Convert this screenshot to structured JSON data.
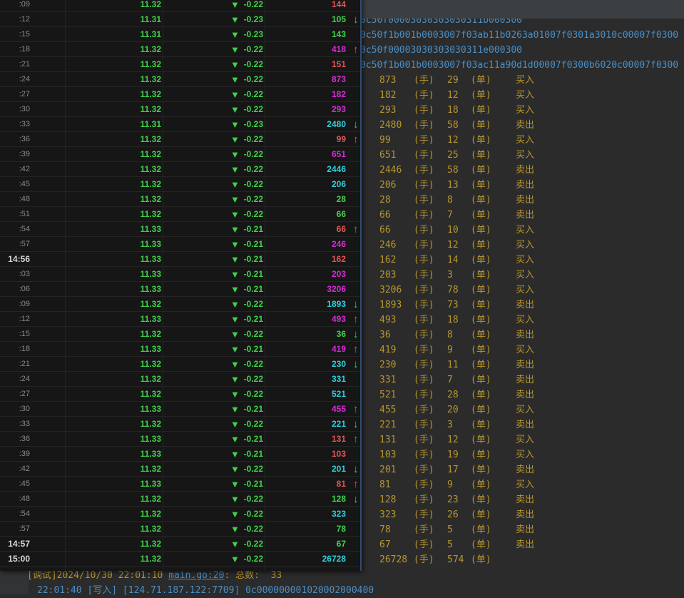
{
  "colors": {
    "red": "#e05555",
    "green": "#3fd24a",
    "magenta": "#d82ad8",
    "cyan": "#2ed0dc",
    "console_yellow": "#b8972e",
    "console_blue": "#4a8fc7"
  },
  "console": {
    "hex_lines": [
      "0c50f00003030303030311b000300",
      "0c50f1b001b0003007f03ab11b0263a01007f0301a3010c00007f0300",
      "0c50f00003030303030311e000300",
      "0c50f1b001b0003007f03ac11a90d1d00007f0300b6020c00007f0300"
    ],
    "unit_hand": "(手)",
    "unit_order": "(单)",
    "trade_lines": [
      {
        "vol": "873",
        "orders": "29",
        "side": "买入"
      },
      {
        "vol": "182",
        "orders": "12",
        "side": "买入"
      },
      {
        "vol": "293",
        "orders": "18",
        "side": "买入"
      },
      {
        "vol": "2480",
        "orders": "58",
        "side": "卖出"
      },
      {
        "vol": "99",
        "orders": "12",
        "side": "买入"
      },
      {
        "vol": "651",
        "orders": "25",
        "side": "买入"
      },
      {
        "vol": "2446",
        "orders": "58",
        "side": "卖出"
      },
      {
        "vol": "206",
        "orders": "13",
        "side": "卖出"
      },
      {
        "vol": "28",
        "orders": "8",
        "side": "卖出"
      },
      {
        "vol": "66",
        "orders": "7",
        "side": "卖出"
      },
      {
        "vol": "66",
        "orders": "10",
        "side": "买入"
      },
      {
        "vol": "246",
        "orders": "12",
        "side": "买入"
      },
      {
        "vol": "162",
        "orders": "14",
        "side": "买入"
      },
      {
        "vol": "203",
        "orders": "3",
        "side": "买入"
      },
      {
        "vol": "3206",
        "orders": "78",
        "side": "买入"
      },
      {
        "vol": "1893",
        "orders": "73",
        "side": "卖出"
      },
      {
        "vol": "493",
        "orders": "18",
        "side": "买入"
      },
      {
        "vol": "36",
        "orders": "8",
        "side": "卖出"
      },
      {
        "vol": "419",
        "orders": "9",
        "side": "买入"
      },
      {
        "vol": "230",
        "orders": "11",
        "side": "卖出"
      },
      {
        "vol": "331",
        "orders": "7",
        "side": "卖出"
      },
      {
        "vol": "521",
        "orders": "28",
        "side": "卖出"
      },
      {
        "vol": "455",
        "orders": "20",
        "side": "买入"
      },
      {
        "vol": "221",
        "orders": "3",
        "side": "卖出"
      },
      {
        "vol": "131",
        "orders": "12",
        "side": "买入"
      },
      {
        "vol": "103",
        "orders": "19",
        "side": "买入"
      },
      {
        "vol": "201",
        "orders": "17",
        "side": "卖出"
      },
      {
        "vol": "81",
        "orders": "9",
        "side": "买入"
      },
      {
        "vol": "128",
        "orders": "23",
        "side": "卖出"
      },
      {
        "vol": "323",
        "orders": "26",
        "side": "卖出"
      },
      {
        "vol": "78",
        "orders": "5",
        "side": "卖出"
      },
      {
        "vol": "67",
        "orders": "5",
        "side": "卖出"
      },
      {
        "vol": "26728",
        "orders": "574",
        "side": ""
      }
    ],
    "debug_line": {
      "prefix": "[调试]2024/10/30 22:01:10 ",
      "link": "main.go:20",
      "suffix": ": 总数:  33"
    },
    "write_line": "22:01:40 [写入] [124.71.187.122:7709] 0c000000001020002000400"
  },
  "ticks": [
    {
      "time": ":09",
      "price": "11.32",
      "change": "-0.22",
      "vol": "144",
      "vc": "red",
      "arrow": ""
    },
    {
      "time": ":12",
      "price": "11.31",
      "change": "-0.23",
      "vol": "105",
      "vc": "green",
      "arrow": "down"
    },
    {
      "time": ":15",
      "price": "11.31",
      "change": "-0.23",
      "vol": "143",
      "vc": "green",
      "arrow": ""
    },
    {
      "time": ":18",
      "price": "11.32",
      "change": "-0.22",
      "vol": "418",
      "vc": "magenta",
      "arrow": "up"
    },
    {
      "time": ":21",
      "price": "11.32",
      "change": "-0.22",
      "vol": "151",
      "vc": "red",
      "arrow": ""
    },
    {
      "time": ":24",
      "price": "11.32",
      "change": "-0.22",
      "vol": "873",
      "vc": "magenta",
      "arrow": ""
    },
    {
      "time": ":27",
      "price": "11.32",
      "change": "-0.22",
      "vol": "182",
      "vc": "magenta",
      "arrow": ""
    },
    {
      "time": ":30",
      "price": "11.32",
      "change": "-0.22",
      "vol": "293",
      "vc": "magenta",
      "arrow": ""
    },
    {
      "time": ":33",
      "price": "11.31",
      "change": "-0.23",
      "vol": "2480",
      "vc": "cyan",
      "arrow": "down"
    },
    {
      "time": ":36",
      "price": "11.32",
      "change": "-0.22",
      "vol": "99",
      "vc": "red",
      "arrow": "up"
    },
    {
      "time": ":39",
      "price": "11.32",
      "change": "-0.22",
      "vol": "651",
      "vc": "magenta",
      "arrow": ""
    },
    {
      "time": ":42",
      "price": "11.32",
      "change": "-0.22",
      "vol": "2446",
      "vc": "cyan",
      "arrow": ""
    },
    {
      "time": ":45",
      "price": "11.32",
      "change": "-0.22",
      "vol": "206",
      "vc": "cyan",
      "arrow": ""
    },
    {
      "time": ":48",
      "price": "11.32",
      "change": "-0.22",
      "vol": "28",
      "vc": "green",
      "arrow": ""
    },
    {
      "time": ":51",
      "price": "11.32",
      "change": "-0.22",
      "vol": "66",
      "vc": "green",
      "arrow": ""
    },
    {
      "time": ":54",
      "price": "11.33",
      "change": "-0.21",
      "vol": "66",
      "vc": "red",
      "arrow": "up"
    },
    {
      "time": ":57",
      "price": "11.33",
      "change": "-0.21",
      "vol": "246",
      "vc": "magenta",
      "arrow": ""
    },
    {
      "time": "14:56",
      "price": "11.33",
      "change": "-0.21",
      "vol": "162",
      "vc": "red",
      "arrow": ""
    },
    {
      "time": ":03",
      "price": "11.33",
      "change": "-0.21",
      "vol": "203",
      "vc": "magenta",
      "arrow": ""
    },
    {
      "time": ":06",
      "price": "11.33",
      "change": "-0.21",
      "vol": "3206",
      "vc": "magenta",
      "arrow": ""
    },
    {
      "time": ":09",
      "price": "11.32",
      "change": "-0.22",
      "vol": "1893",
      "vc": "cyan",
      "arrow": "down"
    },
    {
      "time": ":12",
      "price": "11.33",
      "change": "-0.21",
      "vol": "493",
      "vc": "magenta",
      "arrow": "up"
    },
    {
      "time": ":15",
      "price": "11.32",
      "change": "-0.22",
      "vol": "36",
      "vc": "green",
      "arrow": "down"
    },
    {
      "time": ":18",
      "price": "11.33",
      "change": "-0.21",
      "vol": "419",
      "vc": "magenta",
      "arrow": "up"
    },
    {
      "time": ":21",
      "price": "11.32",
      "change": "-0.22",
      "vol": "230",
      "vc": "cyan",
      "arrow": "down"
    },
    {
      "time": ":24",
      "price": "11.32",
      "change": "-0.22",
      "vol": "331",
      "vc": "cyan",
      "arrow": ""
    },
    {
      "time": ":27",
      "price": "11.32",
      "change": "-0.22",
      "vol": "521",
      "vc": "cyan",
      "arrow": ""
    },
    {
      "time": ":30",
      "price": "11.33",
      "change": "-0.21",
      "vol": "455",
      "vc": "magenta",
      "arrow": "up"
    },
    {
      "time": ":33",
      "price": "11.32",
      "change": "-0.22",
      "vol": "221",
      "vc": "cyan",
      "arrow": "down"
    },
    {
      "time": ":36",
      "price": "11.33",
      "change": "-0.21",
      "vol": "131",
      "vc": "red",
      "arrow": "up"
    },
    {
      "time": ":39",
      "price": "11.33",
      "change": "-0.21",
      "vol": "103",
      "vc": "red",
      "arrow": ""
    },
    {
      "time": ":42",
      "price": "11.32",
      "change": "-0.22",
      "vol": "201",
      "vc": "cyan",
      "arrow": "down"
    },
    {
      "time": ":45",
      "price": "11.33",
      "change": "-0.21",
      "vol": "81",
      "vc": "red",
      "arrow": "up"
    },
    {
      "time": ":48",
      "price": "11.32",
      "change": "-0.22",
      "vol": "128",
      "vc": "green",
      "arrow": "down"
    },
    {
      "time": ":54",
      "price": "11.32",
      "change": "-0.22",
      "vol": "323",
      "vc": "cyan",
      "arrow": ""
    },
    {
      "time": ":57",
      "price": "11.32",
      "change": "-0.22",
      "vol": "78",
      "vc": "green",
      "arrow": ""
    },
    {
      "time": "14:57",
      "price": "11.32",
      "change": "-0.22",
      "vol": "67",
      "vc": "green",
      "arrow": ""
    },
    {
      "time": "15:00",
      "price": "11.32",
      "change": "-0.22",
      "vol": "26728",
      "vc": "cyan",
      "arrow": ""
    }
  ]
}
